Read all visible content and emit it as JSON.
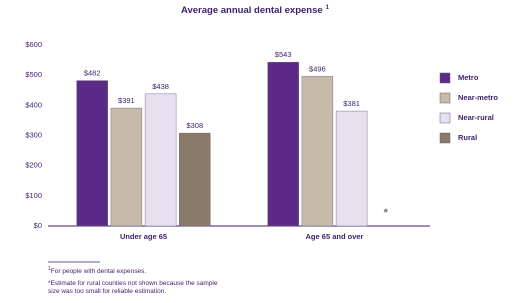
{
  "chart_data": {
    "type": "bar",
    "title": "Average annual dental expense",
    "categories": [
      "Under age 65",
      "Age 65 and over"
    ],
    "series": [
      {
        "name": "Metro",
        "color": "#5b2a86",
        "values": [
          482,
          543
        ],
        "value_labels": [
          "$482",
          "$543"
        ]
      },
      {
        "name": "Near-metro",
        "color": "#c6baa9",
        "values": [
          391,
          496
        ],
        "value_labels": [
          "$391",
          "$496"
        ]
      },
      {
        "name": "Near-rural",
        "color": "#e5e1ef",
        "values": [
          438,
          381
        ],
        "value_labels": [
          "$438",
          "$381"
        ]
      },
      {
        "name": "Rural",
        "color": "#8a7a69",
        "values": [
          308,
          null
        ],
        "value_labels": [
          "$308",
          null
        ]
      }
    ],
    "ylim": [
      0,
      600
    ],
    "yticks": [
      {
        "value": 0,
        "label": "$0"
      },
      {
        "value": 100,
        "label": "$100"
      },
      {
        "value": 200,
        "label": "$200"
      },
      {
        "value": 300,
        "label": "$300"
      },
      {
        "value": 400,
        "label": "$400"
      },
      {
        "value": 500,
        "label": "$500"
      },
      {
        "value": 600,
        "label": "$600"
      }
    ],
    "grid": false,
    "legend": "right",
    "footnotes": [
      {
        "marker": "1",
        "text": "For people with dental expenses."
      },
      {
        "marker": "*",
        "text": "Estimate for rural counties not shown because the sample size was too small for reliable estimation."
      }
    ]
  }
}
